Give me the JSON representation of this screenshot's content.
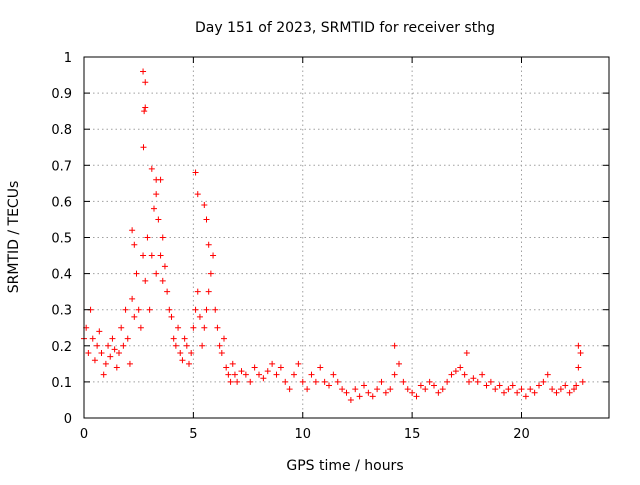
{
  "chart_data": {
    "type": "scatter",
    "title": "Day 151 of 2023, SRMTID for receiver sthg",
    "xlabel": "GPS time / hours",
    "ylabel": "SRMTID / TECUs",
    "xlim": [
      0,
      24
    ],
    "ylim": [
      0,
      1
    ],
    "x_ticks": [
      0,
      5,
      10,
      15,
      20
    ],
    "x_tick_labels": [
      "0",
      "5",
      "10",
      "15",
      "20"
    ],
    "y_ticks": [
      0,
      0.1,
      0.2,
      0.3,
      0.4,
      0.5,
      0.6,
      0.7,
      0.8,
      0.9,
      1
    ],
    "y_tick_labels": [
      "0",
      "0.1",
      "0.2",
      "0.3",
      "0.4",
      "0.5",
      "0.6",
      "0.7",
      "0.8",
      "0.9",
      "1"
    ],
    "grid": true,
    "marker": "+",
    "marker_color": "#ff0000",
    "series": [
      {
        "name": "SRMTID",
        "x": [
          0.0,
          0.1,
          0.2,
          0.3,
          0.4,
          0.5,
          0.6,
          0.7,
          0.8,
          0.9,
          1.0,
          1.1,
          1.2,
          1.3,
          1.4,
          1.5,
          1.6,
          1.7,
          1.8,
          1.9,
          2.0,
          2.1,
          2.2,
          2.3,
          2.4,
          2.5,
          2.6,
          2.7,
          2.8,
          2.9,
          3.0,
          3.1,
          3.2,
          3.3,
          3.4,
          3.5,
          3.6,
          3.7,
          3.8,
          3.9,
          4.0,
          4.1,
          4.2,
          4.3,
          4.4,
          4.5,
          4.6,
          4.7,
          4.8,
          4.9,
          5.0,
          5.1,
          5.2,
          5.3,
          5.4,
          5.5,
          5.6,
          5.7,
          5.8,
          5.9,
          6.0,
          6.1,
          6.2,
          6.3,
          6.4,
          6.5,
          6.6,
          6.7,
          6.8,
          6.9,
          7.0,
          7.2,
          7.4,
          7.6,
          7.8,
          8.0,
          8.2,
          8.4,
          8.6,
          8.8,
          9.0,
          9.2,
          9.4,
          9.6,
          9.8,
          10.0,
          10.2,
          10.4,
          10.6,
          10.8,
          11.0,
          11.2,
          11.4,
          11.6,
          11.8,
          12.0,
          12.2,
          12.4,
          12.6,
          12.8,
          13.0,
          13.2,
          13.4,
          13.6,
          13.8,
          14.0,
          14.2,
          14.4,
          14.6,
          14.8,
          15.0,
          15.2,
          15.4,
          15.6,
          15.8,
          16.0,
          16.2,
          16.4,
          16.6,
          16.8,
          17.0,
          17.2,
          17.4,
          17.6,
          17.8,
          18.0,
          18.2,
          18.4,
          18.6,
          18.8,
          19.0,
          19.2,
          19.4,
          19.6,
          19.8,
          20.0,
          20.2,
          20.4,
          20.6,
          20.8,
          21.0,
          21.2,
          21.4,
          21.6,
          21.8,
          22.0,
          22.2,
          22.4,
          22.5,
          22.6,
          22.7,
          22.8,
          2.7,
          2.8,
          2.8,
          2.75,
          2.72,
          3.1,
          3.3,
          3.5,
          3.3,
          3.6,
          2.2,
          2.3,
          5.1,
          5.2,
          5.5,
          5.6,
          5.7,
          14.2,
          17.5,
          22.6
        ],
        "y": [
          0.22,
          0.25,
          0.18,
          0.3,
          0.22,
          0.16,
          0.2,
          0.24,
          0.18,
          0.12,
          0.15,
          0.2,
          0.17,
          0.22,
          0.19,
          0.14,
          0.18,
          0.25,
          0.2,
          0.3,
          0.22,
          0.15,
          0.33,
          0.28,
          0.4,
          0.3,
          0.25,
          0.45,
          0.38,
          0.5,
          0.3,
          0.45,
          0.58,
          0.4,
          0.55,
          0.45,
          0.38,
          0.42,
          0.35,
          0.3,
          0.28,
          0.22,
          0.2,
          0.25,
          0.18,
          0.16,
          0.22,
          0.2,
          0.15,
          0.18,
          0.25,
          0.3,
          0.35,
          0.28,
          0.2,
          0.25,
          0.3,
          0.35,
          0.4,
          0.45,
          0.3,
          0.25,
          0.2,
          0.18,
          0.22,
          0.14,
          0.12,
          0.1,
          0.15,
          0.12,
          0.1,
          0.13,
          0.12,
          0.1,
          0.14,
          0.12,
          0.11,
          0.13,
          0.15,
          0.12,
          0.14,
          0.1,
          0.08,
          0.12,
          0.15,
          0.1,
          0.08,
          0.12,
          0.1,
          0.14,
          0.1,
          0.09,
          0.12,
          0.1,
          0.08,
          0.07,
          0.05,
          0.08,
          0.06,
          0.09,
          0.07,
          0.06,
          0.08,
          0.1,
          0.07,
          0.08,
          0.12,
          0.15,
          0.1,
          0.08,
          0.07,
          0.06,
          0.09,
          0.08,
          0.1,
          0.09,
          0.07,
          0.08,
          0.1,
          0.12,
          0.13,
          0.14,
          0.12,
          0.1,
          0.11,
          0.1,
          0.12,
          0.09,
          0.1,
          0.08,
          0.09,
          0.07,
          0.08,
          0.09,
          0.07,
          0.08,
          0.06,
          0.08,
          0.07,
          0.09,
          0.1,
          0.12,
          0.08,
          0.07,
          0.08,
          0.09,
          0.07,
          0.08,
          0.09,
          0.14,
          0.18,
          0.1,
          0.96,
          0.93,
          0.86,
          0.85,
          0.75,
          0.69,
          0.66,
          0.66,
          0.62,
          0.5,
          0.52,
          0.48,
          0.68,
          0.62,
          0.59,
          0.55,
          0.48,
          0.2,
          0.18,
          0.2
        ]
      }
    ]
  }
}
